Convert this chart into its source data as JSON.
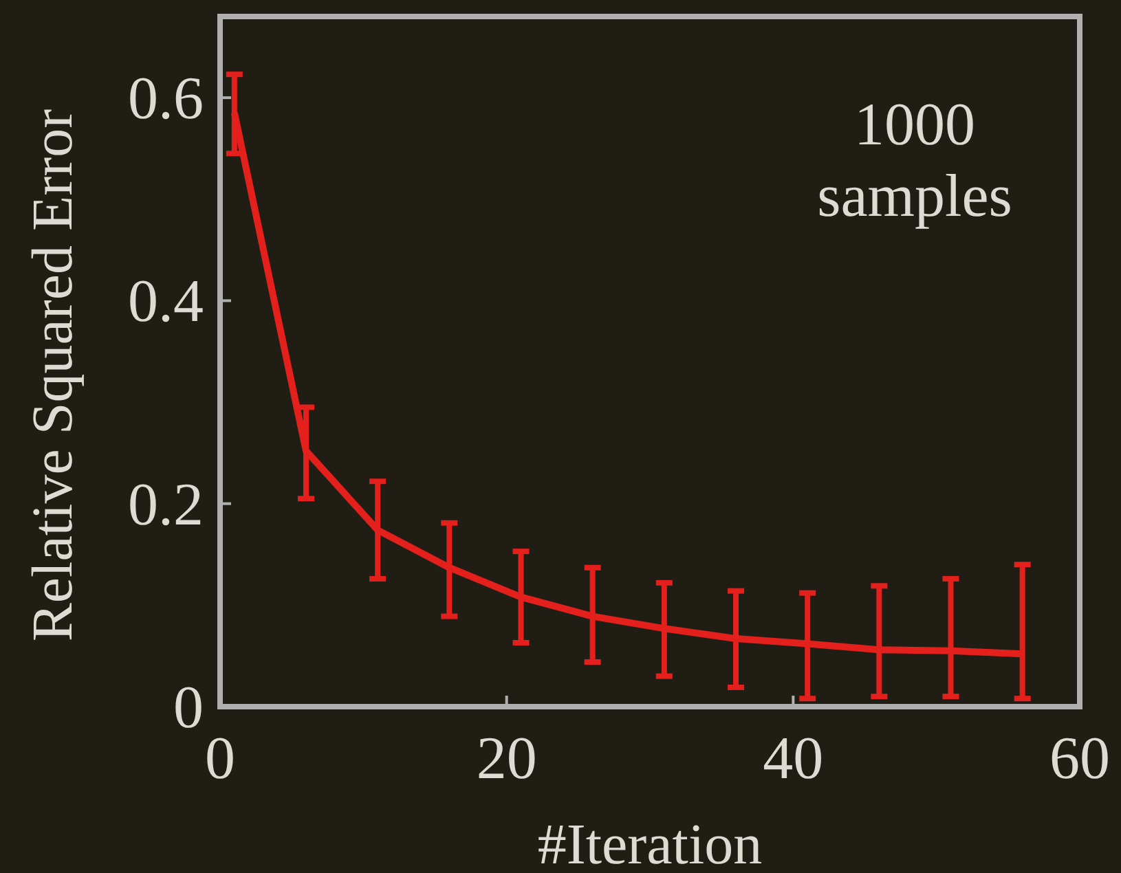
{
  "chart_data": {
    "type": "line",
    "xlabel": "#Iteration",
    "ylabel": "Relative Squared Error",
    "x": [
      1,
      6,
      11,
      16,
      21,
      26,
      31,
      36,
      41,
      46,
      51,
      56
    ],
    "series": [
      {
        "color": "#e3201b",
        "values": [
          0.585,
          0.252,
          0.174,
          0.137,
          0.108,
          0.089,
          0.077,
          0.067,
          0.062,
          0.056,
          0.055,
          0.052
        ],
        "errors": [
          [
            0.545,
            0.623
          ],
          [
            0.205,
            0.295
          ],
          [
            0.126,
            0.222
          ],
          [
            0.089,
            0.181
          ],
          [
            0.063,
            0.153
          ],
          [
            0.044,
            0.137
          ],
          [
            0.03,
            0.122
          ],
          [
            0.019,
            0.114
          ],
          [
            0.008,
            0.112
          ],
          [
            0.01,
            0.119
          ],
          [
            0.01,
            0.126
          ],
          [
            0.008,
            0.14
          ]
        ]
      }
    ],
    "xlim": [
      0,
      60
    ],
    "xticks": [
      0,
      20,
      40,
      60
    ],
    "ylim": [
      0,
      0.68
    ],
    "yticks": [
      0,
      0.2,
      0.4,
      0.6
    ],
    "annotations": [
      "1000\nsamples"
    ],
    "grid": false,
    "marker": "none",
    "line_style": "solid"
  }
}
